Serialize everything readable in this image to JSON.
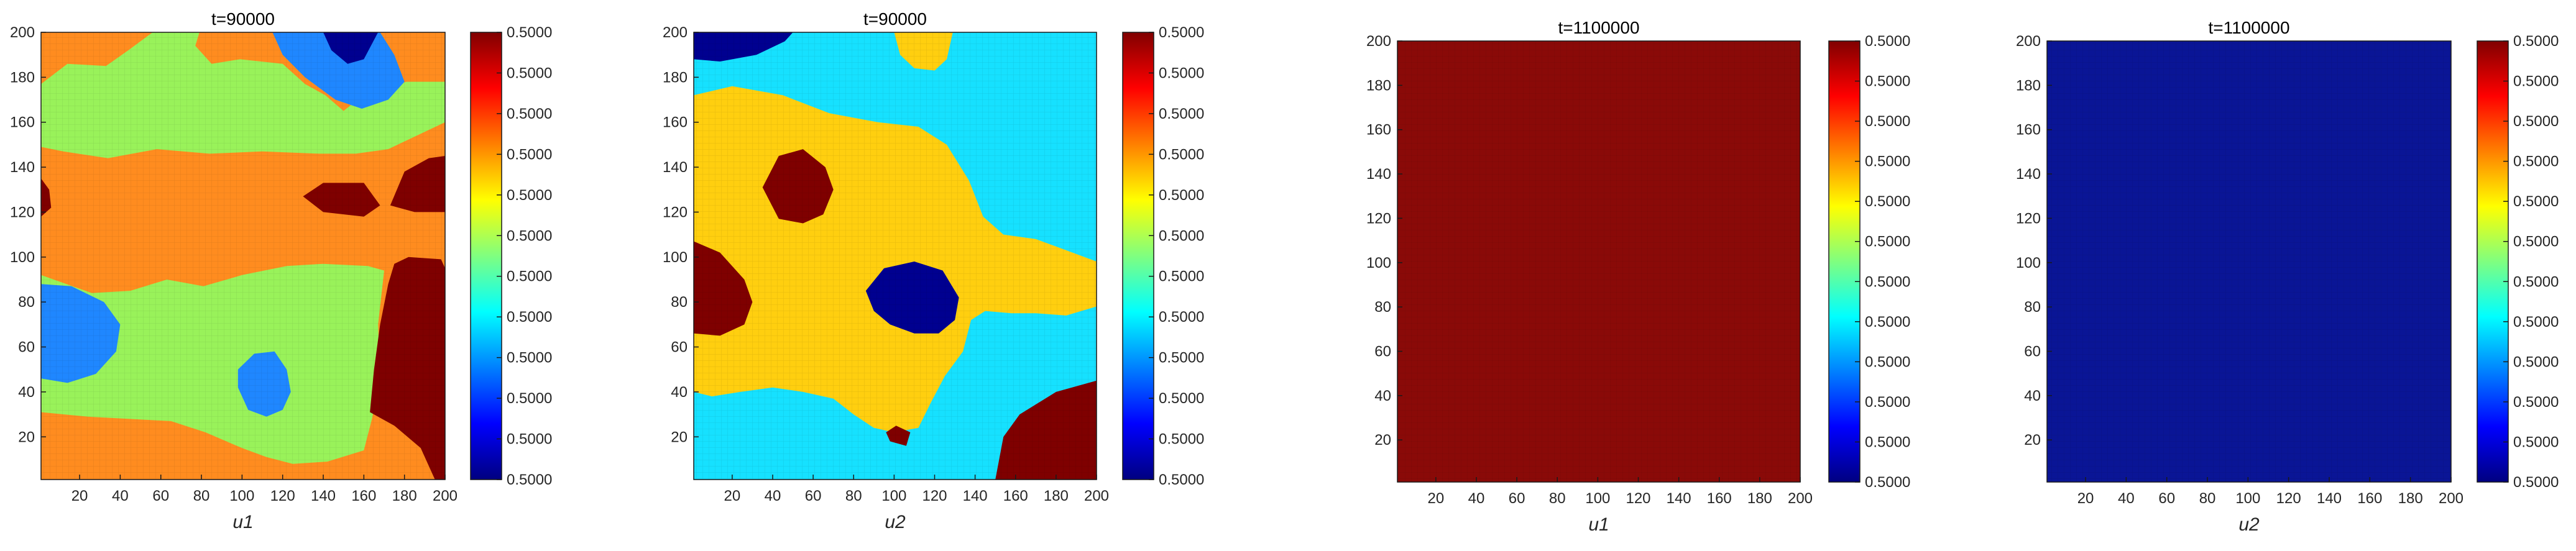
{
  "panels": [
    {
      "type": "heatmap",
      "title": "t=90000",
      "xlabel": "u1",
      "ylabel": "",
      "xlim": [
        1,
        200
      ],
      "ylim": [
        1,
        200
      ],
      "x_ticks": [
        "20",
        "40",
        "60",
        "80",
        "100",
        "120",
        "140",
        "160",
        "180",
        "200"
      ],
      "y_ticks": [
        "20",
        "40",
        "60",
        "80",
        "100",
        "120",
        "140",
        "160",
        "180",
        "200"
      ],
      "colorbar_ticks": [
        "0.5000",
        "0.5000",
        "0.5000",
        "0.5000",
        "0.5000",
        "0.5000",
        "0.5000",
        "0.5000",
        "0.5000",
        "0.5000",
        "0.5000",
        "0.5000"
      ],
      "colormap": "jet",
      "background_color": "#ff8c1f",
      "regions": [
        {
          "color": "#99f25a",
          "points": [
            [
              1,
              177
            ],
            [
              14,
              186
            ],
            [
              33,
              185
            ],
            [
              44,
              192
            ],
            [
              56,
              200
            ],
            [
              79,
              200
            ],
            [
              77,
              194
            ],
            [
              85,
              186
            ],
            [
              99,
              188
            ],
            [
              120,
              186
            ],
            [
              131,
              177
            ],
            [
              141,
              172
            ],
            [
              150,
              165
            ],
            [
              161,
              173
            ],
            [
              181,
              178
            ],
            [
              200,
              178
            ],
            [
              200,
              160
            ],
            [
              186,
              154
            ],
            [
              172,
              148
            ],
            [
              156,
              146
            ],
            [
              138,
              146
            ],
            [
              110,
              147
            ],
            [
              84,
              146
            ],
            [
              58,
              148
            ],
            [
              34,
              144
            ],
            [
              12,
              147
            ],
            [
              1,
              149
            ]
          ]
        },
        {
          "color": "#99f25a",
          "points": [
            [
              1,
              92
            ],
            [
              26,
              84
            ],
            [
              45,
              85
            ],
            [
              63,
              90
            ],
            [
              81,
              87
            ],
            [
              100,
              92
            ],
            [
              122,
              96
            ],
            [
              140,
              97
            ],
            [
              162,
              96
            ],
            [
              170,
              94
            ],
            [
              167,
              70
            ],
            [
              168,
              46
            ],
            [
              164,
              28
            ],
            [
              160,
              14
            ],
            [
              142,
              9
            ],
            [
              125,
              8
            ],
            [
              112,
              11
            ],
            [
              100,
              15
            ],
            [
              82,
              22
            ],
            [
              65,
              27
            ],
            [
              44,
              28
            ],
            [
              24,
              29
            ],
            [
              1,
              31
            ]
          ]
        },
        {
          "color": "#1f87ff",
          "points": [
            [
              115,
              200
            ],
            [
              120,
              190
            ],
            [
              131,
              180
            ],
            [
              146,
              170
            ],
            [
              159,
              166
            ],
            [
              172,
              170
            ],
            [
              180,
              178
            ],
            [
              175,
              190
            ],
            [
              168,
              200
            ]
          ]
        },
        {
          "color": "#1f87ff",
          "points": [
            [
              1,
              88
            ],
            [
              16,
              87
            ],
            [
              32,
              80
            ],
            [
              40,
              70
            ],
            [
              38,
              58
            ],
            [
              28,
              48
            ],
            [
              14,
              44
            ],
            [
              1,
              46
            ]
          ]
        },
        {
          "color": "#1f87ff",
          "points": [
            [
              98,
              50
            ],
            [
              106,
              57
            ],
            [
              116,
              58
            ],
            [
              122,
              50
            ],
            [
              124,
              40
            ],
            [
              120,
              32
            ],
            [
              112,
              29
            ],
            [
              103,
              32
            ],
            [
              98,
              42
            ]
          ]
        },
        {
          "color": "#000090",
          "points": [
            [
              140,
              200
            ],
            [
              144,
              192
            ],
            [
              152,
              186
            ],
            [
              160,
              188
            ],
            [
              167,
              200
            ]
          ]
        },
        {
          "color": "#7f0000",
          "points": [
            [
              173,
              123
            ],
            [
              180,
              138
            ],
            [
              192,
              144
            ],
            [
              200,
              145
            ],
            [
              200,
              120
            ],
            [
              185,
              120
            ]
          ]
        },
        {
          "color": "#7f0000",
          "points": [
            [
              130,
              127
            ],
            [
              140,
              120
            ],
            [
              160,
              118
            ],
            [
              168,
              123
            ],
            [
              160,
              133
            ],
            [
              140,
              133
            ]
          ]
        },
        {
          "color": "#7f0000",
          "points": [
            [
              1,
              135
            ],
            [
              5,
              130
            ],
            [
              6,
              122
            ],
            [
              1,
              118
            ]
          ]
        },
        {
          "color": "#7f0000",
          "points": [
            [
              175,
              97
            ],
            [
              182,
              100
            ],
            [
              198,
              99
            ],
            [
              200,
              95
            ],
            [
              200,
              1
            ],
            [
              195,
              1
            ],
            [
              188,
              15
            ],
            [
              175,
              25
            ],
            [
              163,
              31
            ],
            [
              165,
              50
            ],
            [
              168,
              70
            ],
            [
              172,
              88
            ]
          ]
        }
      ]
    },
    {
      "type": "heatmap",
      "title": "t=90000",
      "xlabel": "u2",
      "ylabel": "",
      "xlim": [
        1,
        200
      ],
      "ylim": [
        1,
        200
      ],
      "x_ticks": [
        "20",
        "40",
        "60",
        "80",
        "100",
        "120",
        "140",
        "160",
        "180",
        "200"
      ],
      "y_ticks": [
        "20",
        "40",
        "60",
        "80",
        "100",
        "120",
        "140",
        "160",
        "180",
        "200"
      ],
      "colorbar_ticks": [
        "0.5000",
        "0.5000",
        "0.5000",
        "0.5000",
        "0.5000",
        "0.5000",
        "0.5000",
        "0.5000",
        "0.5000",
        "0.5000",
        "0.5000",
        "0.5000"
      ],
      "colormap": "jet",
      "background_color": "#16e1ff",
      "regions": [
        {
          "color": "#ffcf0f",
          "points": [
            [
              1,
              172
            ],
            [
              20,
              176
            ],
            [
              45,
              172
            ],
            [
              68,
              164
            ],
            [
              92,
              160
            ],
            [
              112,
              158
            ],
            [
              126,
              150
            ],
            [
              137,
              134
            ],
            [
              144,
              118
            ],
            [
              154,
              110
            ],
            [
              170,
              108
            ],
            [
              182,
              104
            ],
            [
              200,
              98
            ],
            [
              200,
              78
            ],
            [
              185,
              74
            ],
            [
              170,
              75
            ],
            [
              158,
              75
            ],
            [
              145,
              76
            ],
            [
              138,
              72
            ],
            [
              134,
              58
            ],
            [
              125,
              47
            ],
            [
              118,
              35
            ],
            [
              112,
              24
            ],
            [
              100,
              22
            ],
            [
              90,
              24
            ],
            [
              80,
              30
            ],
            [
              70,
              37
            ],
            [
              55,
              40
            ],
            [
              40,
              42
            ],
            [
              24,
              40
            ],
            [
              10,
              38
            ],
            [
              1,
              40
            ]
          ]
        },
        {
          "color": "#ffcf0f",
          "points": [
            [
              100,
              200
            ],
            [
              103,
              190
            ],
            [
              110,
              184
            ],
            [
              120,
              183
            ],
            [
              126,
              188
            ],
            [
              129,
              200
            ]
          ]
        },
        {
          "color": "#000090",
          "points": [
            [
              1,
              200
            ],
            [
              1,
              188
            ],
            [
              14,
              187
            ],
            [
              32,
              190
            ],
            [
              46,
              196
            ],
            [
              50,
              200
            ]
          ]
        },
        {
          "color": "#000090",
          "points": [
            [
              86,
              85
            ],
            [
              95,
              95
            ],
            [
              110,
              98
            ],
            [
              124,
              94
            ],
            [
              132,
              82
            ],
            [
              130,
              72
            ],
            [
              122,
              66
            ],
            [
              110,
              66
            ],
            [
              98,
              70
            ],
            [
              90,
              76
            ]
          ]
        },
        {
          "color": "#7f0000",
          "points": [
            [
              35,
              131
            ],
            [
              43,
              145
            ],
            [
              55,
              148
            ],
            [
              66,
              140
            ],
            [
              70,
              130
            ],
            [
              65,
              119
            ],
            [
              55,
              115
            ],
            [
              43,
              117
            ]
          ]
        },
        {
          "color": "#7f0000",
          "points": [
            [
              1,
              107
            ],
            [
              14,
              102
            ],
            [
              26,
              90
            ],
            [
              30,
              80
            ],
            [
              26,
              70
            ],
            [
              14,
              65
            ],
            [
              1,
              66
            ]
          ]
        },
        {
          "color": "#7f0000",
          "points": [
            [
              96,
              22
            ],
            [
              101,
              25
            ],
            [
              108,
              22
            ],
            [
              106,
              16
            ],
            [
              98,
              18
            ]
          ]
        },
        {
          "color": "#7f0000",
          "points": [
            [
              150,
              1
            ],
            [
              154,
              20
            ],
            [
              162,
              30
            ],
            [
              180,
              40
            ],
            [
              200,
              45
            ],
            [
              200,
              1
            ]
          ]
        }
      ]
    },
    {
      "type": "heatmap",
      "title": "t=1100000",
      "xlabel": "u1",
      "ylabel": "",
      "xlim": [
        1,
        200
      ],
      "ylim": [
        1,
        200
      ],
      "x_ticks": [
        "20",
        "40",
        "60",
        "80",
        "100",
        "120",
        "140",
        "160",
        "180",
        "200"
      ],
      "y_ticks": [
        "20",
        "40",
        "60",
        "80",
        "100",
        "120",
        "140",
        "160",
        "180",
        "200"
      ],
      "colorbar_ticks": [
        "0.5000",
        "0.5000",
        "0.5000",
        "0.5000",
        "0.5000",
        "0.5000",
        "0.5000",
        "0.5000",
        "0.5000",
        "0.5000",
        "0.5000",
        "0.5000"
      ],
      "colormap": "jet",
      "background_color": "#8a0a08",
      "regions": []
    },
    {
      "type": "heatmap",
      "title": "t=1100000",
      "xlabel": "u2",
      "ylabel": "",
      "xlim": [
        1,
        200
      ],
      "ylim": [
        1,
        200
      ],
      "x_ticks": [
        "20",
        "40",
        "60",
        "80",
        "100",
        "120",
        "140",
        "160",
        "180",
        "200"
      ],
      "y_ticks": [
        "20",
        "40",
        "60",
        "80",
        "100",
        "120",
        "140",
        "160",
        "180",
        "200"
      ],
      "colorbar_ticks": [
        "0.5000",
        "0.5000",
        "0.5000",
        "0.5000",
        "0.5000",
        "0.5000",
        "0.5000",
        "0.5000",
        "0.5000",
        "0.5000",
        "0.5000",
        "0.5000"
      ],
      "colormap": "jet",
      "background_color": "#0a1596",
      "regions": []
    }
  ]
}
